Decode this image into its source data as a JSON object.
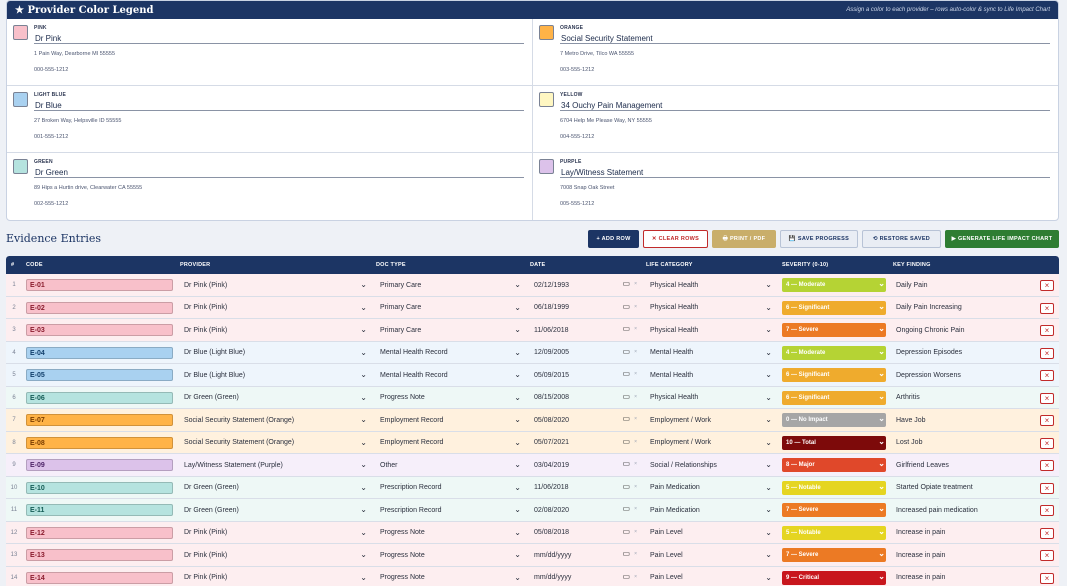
{
  "legend": {
    "title": "★ Provider Color Legend",
    "subtitle": "Assign a color to each provider – rows auto-color & sync to Life Impact Chart",
    "providers": [
      {
        "color_label": "PINK",
        "swatch": "#f8c0ca",
        "name": "Dr Pink",
        "address": "1 Pain Way, Dearborne MI 55555",
        "phone": "000-555-1212"
      },
      {
        "color_label": "ORANGE",
        "swatch": "#ffb347",
        "name": "Social Security Statement",
        "address": "7 Metro Drive, Tilco WA 55555",
        "phone": "003-555-1212"
      },
      {
        "color_label": "LIGHT BLUE",
        "swatch": "#a9d1f0",
        "name": "Dr Blue",
        "address": "27 Broken Way, Helpsville ID 55555",
        "phone": "001-555-1212"
      },
      {
        "color_label": "YELLOW",
        "swatch": "#fff7c2",
        "name": "34 Ouchy Pain Management",
        "address": "6704 Help Me Please Way, NY 55555",
        "phone": "004-555-1212"
      },
      {
        "color_label": "GREEN",
        "swatch": "#b5e3df",
        "name": "Dr Green",
        "address": "89 Hips a Hurtin drive, Clearwater CA 55555",
        "phone": "002-555-1212"
      },
      {
        "color_label": "PURPLE",
        "swatch": "#dcc2ea",
        "name": "Lay/Witness Statement",
        "address": "7008 Snap Oak Street",
        "phone": "005-555-1212"
      }
    ]
  },
  "evidence": {
    "title": "Evidence Entries",
    "buttons": {
      "add": "+ ADD ROW",
      "clear": "✕ CLEAR ROWS",
      "print": "🖶 PRINT / PDF",
      "save": "💾 SAVE PROGRESS",
      "restore": "⟲ RESTORE SAVED",
      "generate": "▶ GENERATE LIFE IMPACT CHART"
    },
    "columns": {
      "num": "#",
      "code": "CODE",
      "provider": "PROVIDER",
      "doctype": "DOC TYPE",
      "date": "DATE",
      "life": "LIFE CATEGORY",
      "severity": "SEVERITY (0-10)",
      "finding": "KEY FINDING"
    },
    "rows": [
      {
        "num": "1",
        "code": "E-01",
        "provider": "Dr Pink (Pink)",
        "doctype": "Primary Care",
        "date": "02/12/1993",
        "life": "Physical Health",
        "severity": "4 — Moderate",
        "finding": "Daily Pain",
        "row_bg": "#fdeef0",
        "code_bg": "#f8c0ca",
        "code_color": "#8a1c2e",
        "sev_bg": "#b5d334",
        "sev_color": "#ffffff"
      },
      {
        "num": "2",
        "code": "E-02",
        "provider": "Dr Pink (Pink)",
        "doctype": "Primary Care",
        "date": "06/18/1999",
        "life": "Physical Health",
        "severity": "6 — Significant",
        "finding": "Daily Pain Increasing",
        "row_bg": "#fdeef0",
        "code_bg": "#f8c0ca",
        "code_color": "#8a1c2e",
        "sev_bg": "#efab2d",
        "sev_color": "#ffffff"
      },
      {
        "num": "3",
        "code": "E-03",
        "provider": "Dr Pink (Pink)",
        "doctype": "Primary Care",
        "date": "11/06/2018",
        "life": "Physical Health",
        "severity": "7 — Severe",
        "finding": "Ongoing Chronic Pain",
        "row_bg": "#fdeef0",
        "code_bg": "#f8c0ca",
        "code_color": "#8a1c2e",
        "sev_bg": "#ec7a24",
        "sev_color": "#ffffff"
      },
      {
        "num": "4",
        "code": "E-04",
        "provider": "Dr Blue (Light Blue)",
        "doctype": "Mental Health Record",
        "date": "12/09/2005",
        "life": "Mental Health",
        "severity": "4 — Moderate",
        "finding": "Depression Episodes",
        "row_bg": "#eef5fc",
        "code_bg": "#a9d1f0",
        "code_color": "#123f6b",
        "sev_bg": "#b5d334",
        "sev_color": "#ffffff"
      },
      {
        "num": "5",
        "code": "E-05",
        "provider": "Dr Blue (Light Blue)",
        "doctype": "Mental Health Record",
        "date": "05/09/2015",
        "life": "Mental Health",
        "severity": "6 — Significant",
        "finding": "Depression Worsens",
        "row_bg": "#eef5fc",
        "code_bg": "#a9d1f0",
        "code_color": "#123f6b",
        "sev_bg": "#efab2d",
        "sev_color": "#ffffff"
      },
      {
        "num": "6",
        "code": "E-06",
        "provider": "Dr Green (Green)",
        "doctype": "Progress Note",
        "date": "08/15/2008",
        "life": "Physical Health",
        "severity": "6 — Significant",
        "finding": "Arthritis",
        "row_bg": "#eef8f6",
        "code_bg": "#b5e3df",
        "code_color": "#155c55",
        "sev_bg": "#efab2d",
        "sev_color": "#ffffff"
      },
      {
        "num": "7",
        "code": "E-07",
        "provider": "Social Security Statement (Orange)",
        "doctype": "Employment Record",
        "date": "05/08/2020",
        "life": "Employment / Work",
        "severity": "0 — No Impact",
        "finding": "Have Job",
        "row_bg": "#fff1de",
        "code_bg": "#ffb347",
        "code_color": "#7a3d00",
        "sev_bg": "#a6a6a6",
        "sev_color": "#ffffff"
      },
      {
        "num": "8",
        "code": "E-08",
        "provider": "Social Security Statement (Orange)",
        "doctype": "Employment Record",
        "date": "05/07/2021",
        "life": "Employment / Work",
        "severity": "10 — Total",
        "finding": "Lost Job",
        "row_bg": "#fff1de",
        "code_bg": "#ffb347",
        "code_color": "#7a3d00",
        "sev_bg": "#7d0a0a",
        "sev_color": "#ffffff"
      },
      {
        "num": "9",
        "code": "E-09",
        "provider": "Lay/Witness Statement (Purple)",
        "doctype": "Other",
        "date": "03/04/2019",
        "life": "Social / Relationships",
        "severity": "8 — Major",
        "finding": "Girlfriend Leaves",
        "row_bg": "#f6effa",
        "code_bg": "#dcc2ea",
        "code_color": "#4e2468",
        "sev_bg": "#e0482a",
        "sev_color": "#ffffff"
      },
      {
        "num": "10",
        "code": "E-10",
        "provider": "Dr Green (Green)",
        "doctype": "Prescription Record",
        "date": "11/06/2018",
        "life": "Pain Medication",
        "severity": "5 — Notable",
        "finding": "Started Opiate treatment",
        "row_bg": "#eef8f6",
        "code_bg": "#b5e3df",
        "code_color": "#155c55",
        "sev_bg": "#e5d521",
        "sev_color": "#ffffff"
      },
      {
        "num": "11",
        "code": "E-11",
        "provider": "Dr Green (Green)",
        "doctype": "Prescription Record",
        "date": "02/08/2020",
        "life": "Pain Medication",
        "severity": "7 — Severe",
        "finding": "Increased pain medication",
        "row_bg": "#eef8f6",
        "code_bg": "#b5e3df",
        "code_color": "#155c55",
        "sev_bg": "#ec7a24",
        "sev_color": "#ffffff"
      },
      {
        "num": "12",
        "code": "E-12",
        "provider": "Dr Pink (Pink)",
        "doctype": "Progress Note",
        "date": "05/08/2018",
        "life": "Pain Level",
        "severity": "5 — Notable",
        "finding": "Increase in pain",
        "row_bg": "#fdeef0",
        "code_bg": "#f8c0ca",
        "code_color": "#8a1c2e",
        "sev_bg": "#e5d521",
        "sev_color": "#ffffff"
      },
      {
        "num": "13",
        "code": "E-13",
        "provider": "Dr Pink (Pink)",
        "doctype": "Progress Note",
        "date": "mm/dd/yyyy",
        "life": "Pain Level",
        "severity": "7 — Severe",
        "finding": "Increase in pain",
        "row_bg": "#fdeef0",
        "code_bg": "#f8c0ca",
        "code_color": "#8a1c2e",
        "sev_bg": "#ec7a24",
        "sev_color": "#ffffff"
      },
      {
        "num": "14",
        "code": "E-14",
        "provider": "Dr Pink (Pink)",
        "doctype": "Progress Note",
        "date": "mm/dd/yyyy",
        "life": "Pain Level",
        "severity": "9 — Critical",
        "finding": "Increase in pain",
        "row_bg": "#fdeef0",
        "code_bg": "#f8c0ca",
        "code_color": "#8a1c2e",
        "sev_bg": "#c8161d",
        "sev_color": "#ffffff"
      }
    ]
  }
}
